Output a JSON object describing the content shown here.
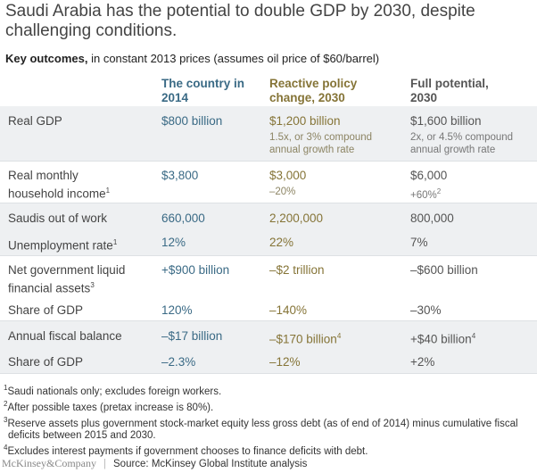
{
  "title": "Saudi Arabia has the potential to double GDP by 2030, despite challenging conditions.",
  "subtitle": {
    "bold": "Key outcomes,",
    "rest": " in constant 2013 prices (assumes oil price of $60/barrel)"
  },
  "columns": [
    "The country in 2014",
    "Reactive policy change, 2030",
    "Full potential, 2030"
  ],
  "colors": {
    "col1": "#3a6a85",
    "col2": "#857437",
    "col3": "#555555",
    "band": "#eef0f2"
  },
  "rows": [
    {
      "label": "Real GDP",
      "sup": "",
      "v": [
        "$800 billion",
        "$1,200 billion",
        "$1,600 billion"
      ],
      "notes": [
        "",
        "1.5x, or 3% compound annual growth rate",
        "2x, or 4.5% compound annual growth rate"
      ]
    },
    {
      "label": "Real monthly household income",
      "sup": "1",
      "v": [
        "$3,800",
        "$3,000",
        "$6,000"
      ],
      "notes": [
        "",
        "–20%",
        "+60%"
      ],
      "note3sup": "2"
    },
    {
      "label": "Saudis out of work",
      "v": [
        "660,000",
        "2,200,000",
        "800,000"
      ]
    },
    {
      "label": "Unemployment rate",
      "sup": "1",
      "v": [
        "12%",
        "22%",
        "7%"
      ]
    },
    {
      "label": "Net government liquid financial assets",
      "sup": "3",
      "v": [
        "+$900 billion",
        "–$2 trillion",
        "–$600 billion"
      ]
    },
    {
      "label": "Share of GDP",
      "v": [
        "120%",
        "–140%",
        "–30%"
      ]
    },
    {
      "label": "Annual fiscal balance",
      "v": [
        "–$17 billion",
        "–$170 billion",
        "+$40 billion"
      ],
      "sups": [
        "",
        "4",
        "4"
      ]
    },
    {
      "label": "Share of GDP",
      "v": [
        "–2.3%",
        "–12%",
        "+2%"
      ]
    }
  ],
  "footnotes": [
    {
      "n": "1",
      "text": "Saudi nationals only; excludes foreign workers."
    },
    {
      "n": "2",
      "text": "After possible taxes (pretax increase is 80%)."
    },
    {
      "n": "3",
      "text": "Reserve assets plus government stock-market equity less gross debt (as of end of 2014) minus cumulative fiscal deficits between 2015 and 2030."
    },
    {
      "n": "4",
      "text": "Excludes interest payments if government chooses to finance deficits with debt."
    }
  ],
  "footer": {
    "logo": "McKinsey&Company",
    "separator": "|",
    "source": "Source: McKinsey Global Institute analysis"
  }
}
